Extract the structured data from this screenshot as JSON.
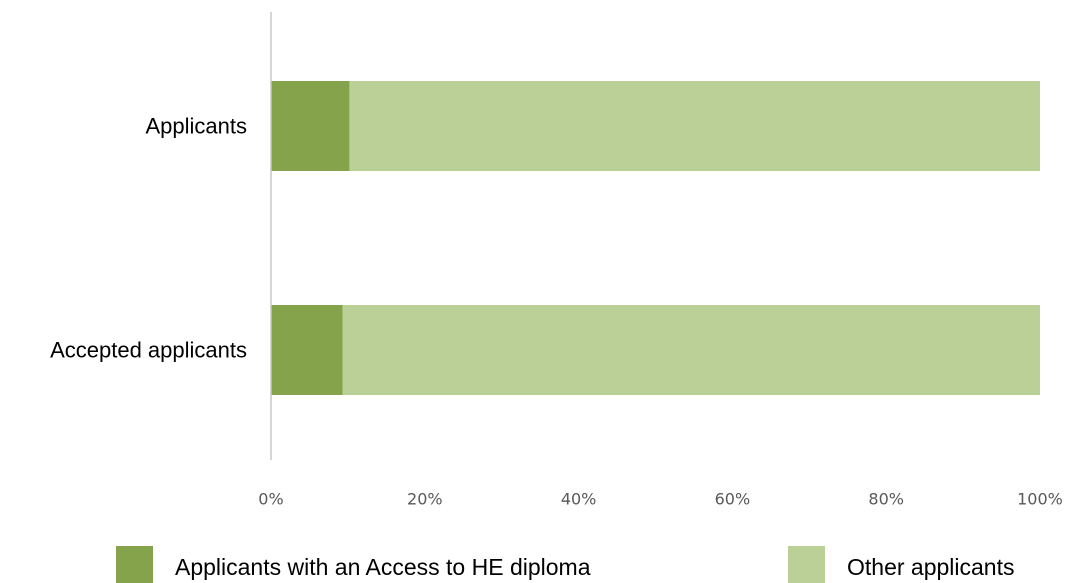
{
  "chart_data": {
    "type": "bar",
    "orientation": "horizontal",
    "stacked": true,
    "percent_stacked": true,
    "categories": [
      "Applicants",
      "Accepted applicants"
    ],
    "series": [
      {
        "name": "Applicants with an Access to HE diploma",
        "values": [
          10.2,
          9.3
        ],
        "color": "#84a34a"
      },
      {
        "name": "Other applicants",
        "values": [
          89.8,
          90.7
        ],
        "color": "#bad096"
      }
    ],
    "xlim": [
      0,
      100
    ],
    "x_ticks": [
      "0%",
      "20%",
      "40%",
      "60%",
      "80%",
      "100%"
    ],
    "title": "",
    "xlabel": "",
    "ylabel": "",
    "grid": false,
    "legend_position": "bottom"
  }
}
